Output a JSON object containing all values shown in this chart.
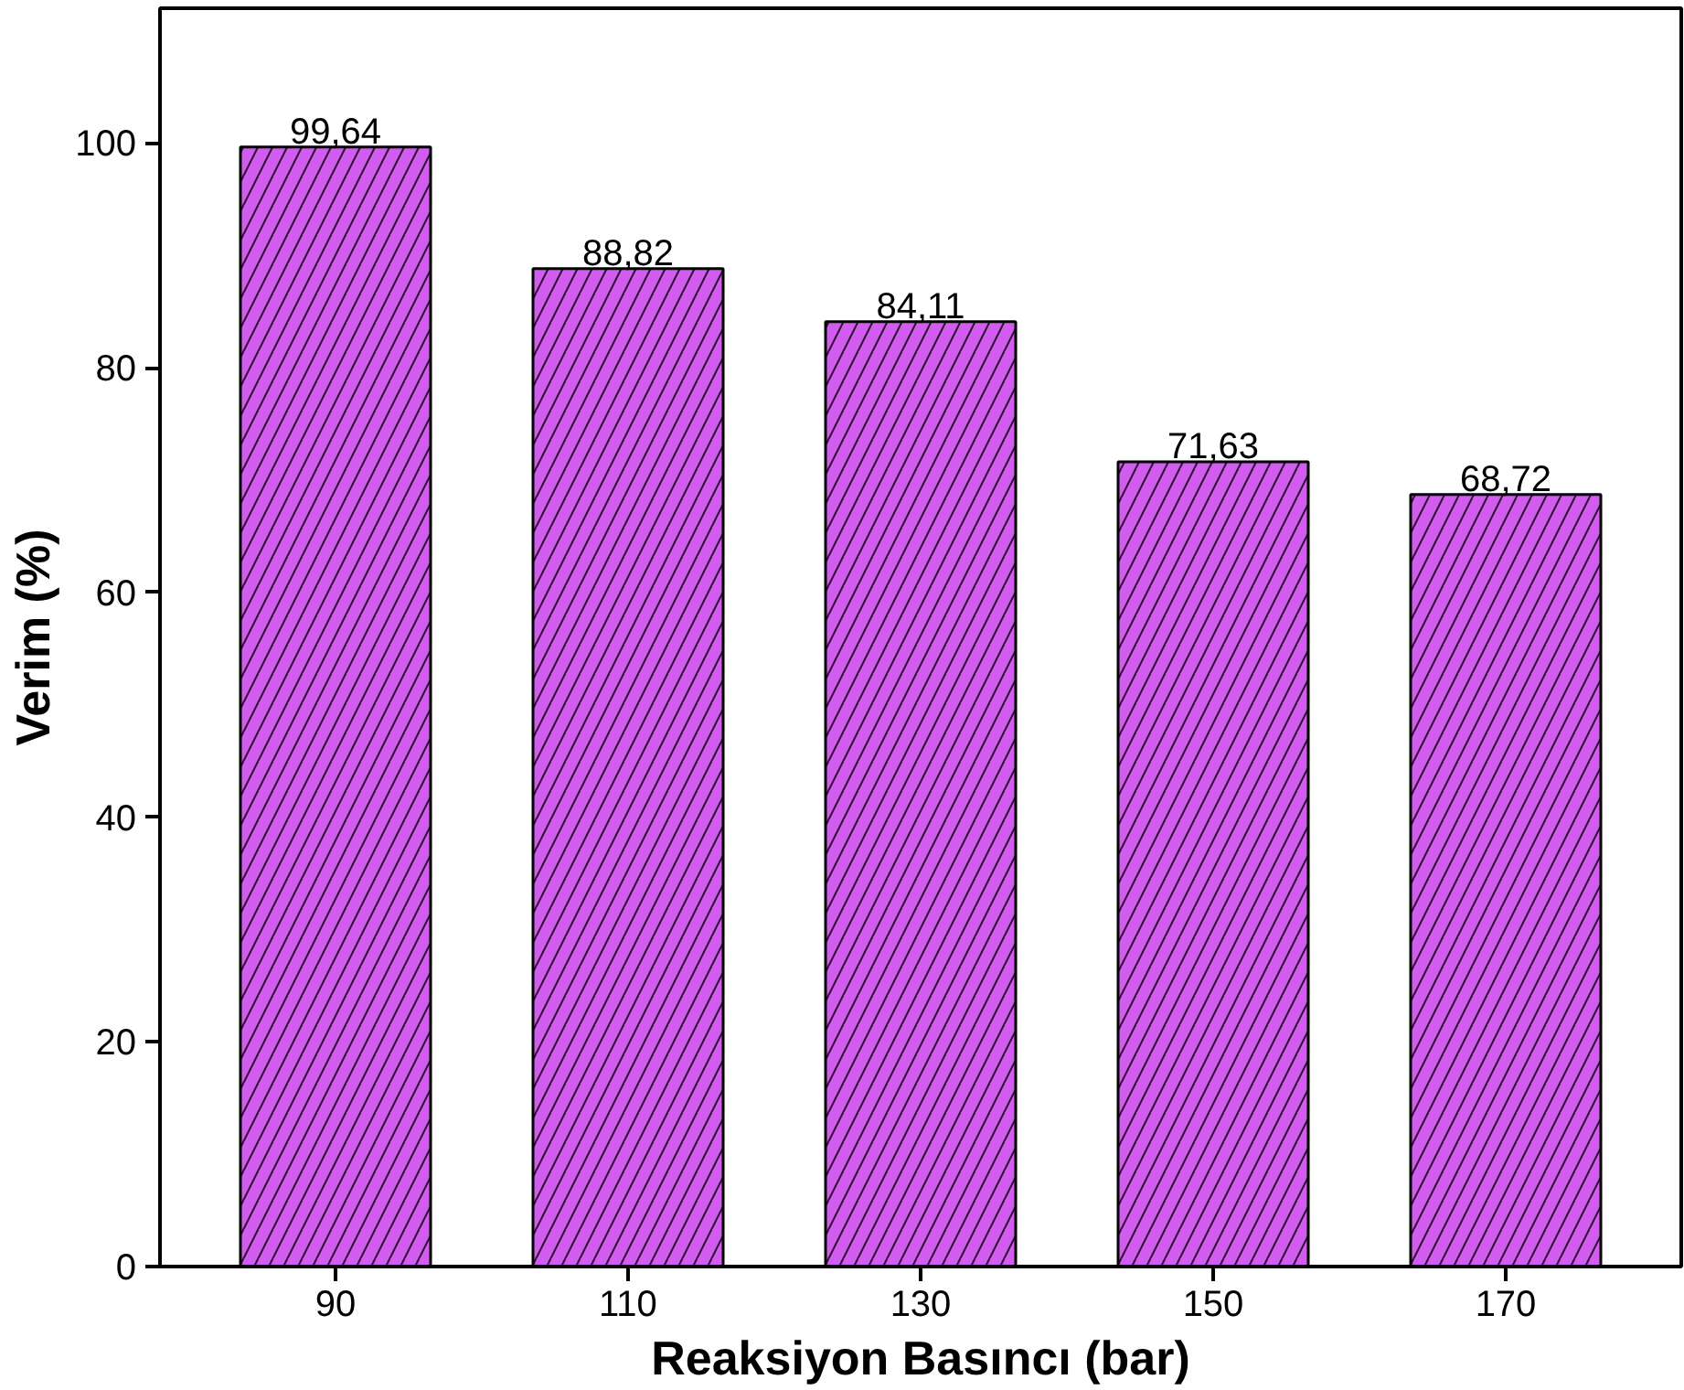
{
  "chart_data": {
    "type": "bar",
    "xlabel": "Reaksiyon Basıncı (bar)",
    "ylabel": "Verim (%)",
    "categories": [
      "90",
      "110",
      "130",
      "150",
      "170"
    ],
    "values": [
      99.64,
      88.82,
      84.11,
      71.63,
      68.72
    ],
    "value_labels": [
      "99,64",
      "88,82",
      "84,11",
      "71,63",
      "68,72"
    ],
    "color": "#d25cf0",
    "ylim": [
      0,
      112
    ],
    "yticks": [
      0,
      20,
      40,
      60,
      80,
      100
    ],
    "grid": false
  }
}
